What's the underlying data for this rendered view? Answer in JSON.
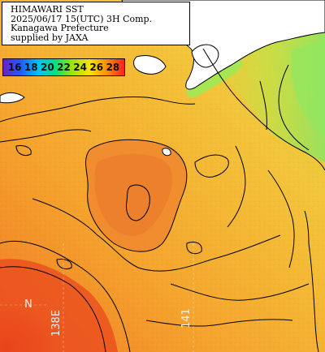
{
  "info": {
    "lines": [
      "HIMAWARI SST",
      "2025/06/17 15(UTC) 3H Comp.",
      "Kanagawa Prefecture",
      "supplied by JAXA"
    ]
  },
  "legend": {
    "labels": [
      "16",
      "18",
      "20",
      "22",
      "24",
      "26",
      "28"
    ],
    "colors": [
      "#6a1fc9",
      "#1f5bff",
      "#00c0ff",
      "#00e080",
      "#9ee600",
      "#ffe000",
      "#ff8c00",
      "#ff2020"
    ]
  },
  "graticule": {
    "longitude_labels": [
      "138E",
      "141"
    ],
    "latitude_labels": [
      "N"
    ]
  },
  "colors": {
    "land": "#ffffff",
    "coastline": "#000000",
    "sst_warm": "#e63a1c",
    "sst_mid": "#f4a12c",
    "sst_cool": "#b4e64a"
  }
}
